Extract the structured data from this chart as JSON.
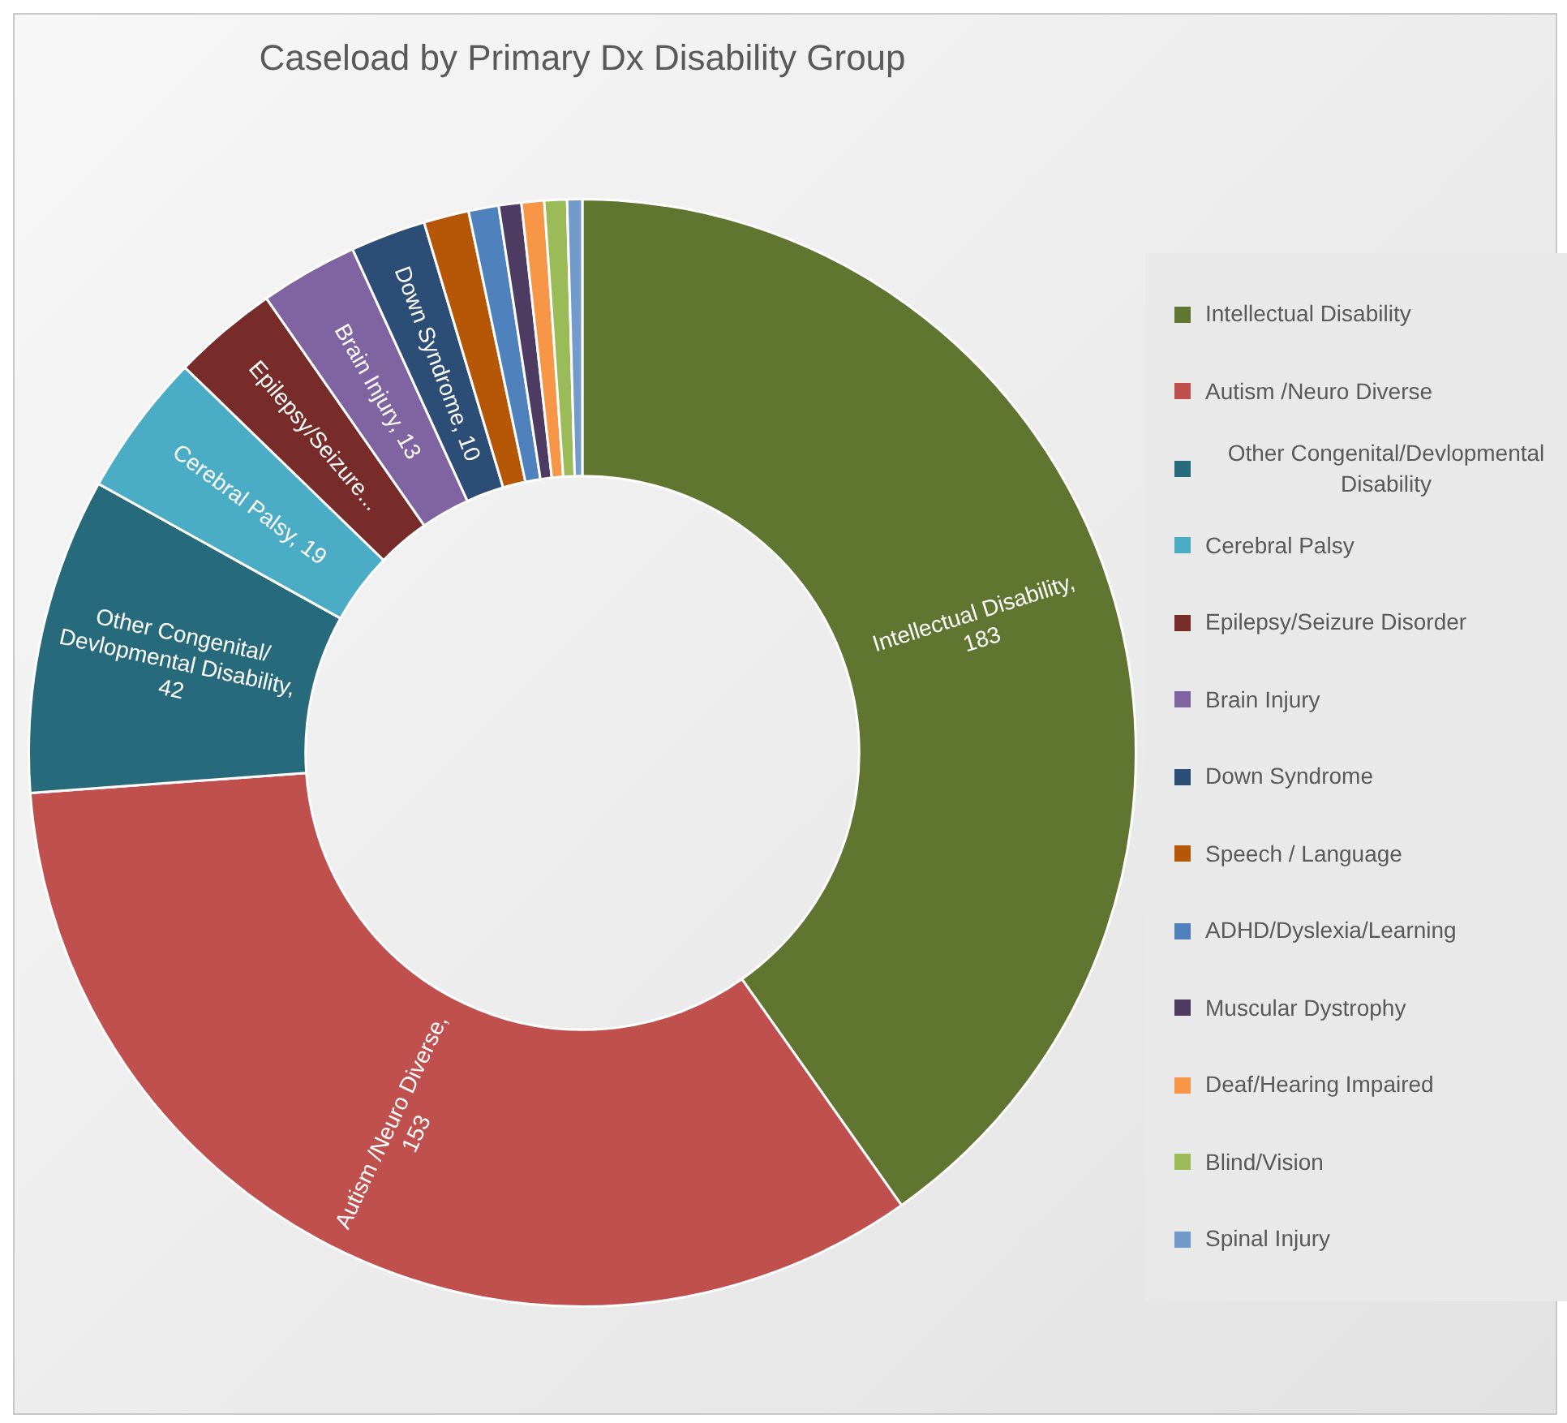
{
  "chart_data": {
    "type": "donut",
    "title": "Caseload by Primary Dx Disability Group",
    "categories": [
      "Intellectual Disability",
      "Autism /Neuro Diverse",
      "Other Congenital/Devlopmental Disability",
      "Cerebral Palsy",
      "Epilepsy/Seizure Disorder",
      "Brain Injury",
      "Down Syndrome",
      "Speech / Language",
      "ADHD/Dyslexia/Learning",
      "Muscular Dystrophy",
      "Deaf/Hearing Impaired",
      "Blind/Vision",
      "Spinal Injury"
    ],
    "values": [
      183,
      153,
      42,
      19,
      14,
      13,
      10,
      6,
      4,
      3,
      3,
      3,
      2
    ],
    "value_labels": [
      "Intellectual Disability, 183",
      "Autism /Neuro Diverse, 153",
      "Other Congenital/ Devlopmental  Disability, 42",
      "Cerebral Palsy, 19",
      "Epilepsy/Seizure...",
      "Brain Injury, 13",
      "Down Syndrome, 10",
      null,
      null,
      null,
      null,
      null,
      null
    ],
    "colors": [
      "#5f7530",
      "#c0504d",
      "#276a7c",
      "#4bacc6",
      "#772c2a",
      "#8064a2",
      "#2c4d75",
      "#b65708",
      "#4f81bd",
      "#4d3b62",
      "#f79646",
      "#9bbb59",
      "#729aca"
    ],
    "legend": "right"
  }
}
